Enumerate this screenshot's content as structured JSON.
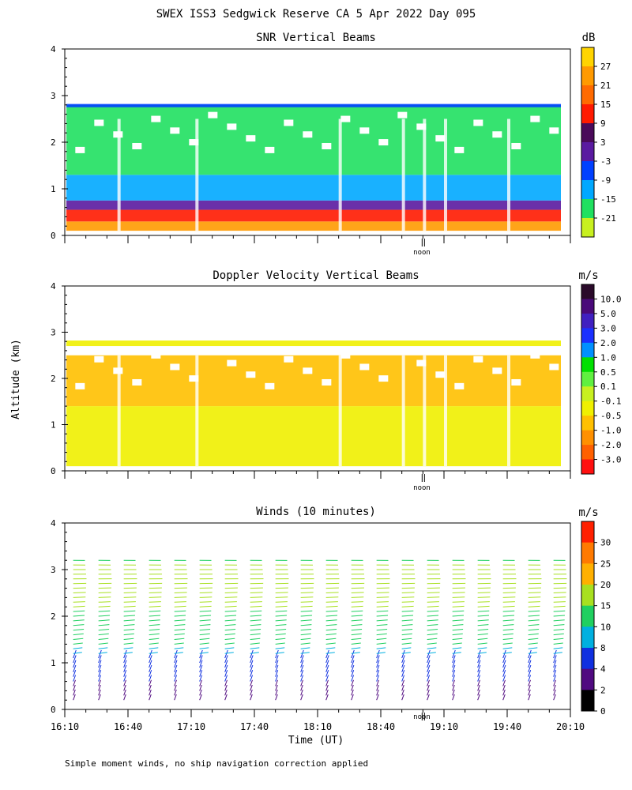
{
  "page": {
    "title": "SWEX ISS3 Sedgwick Reserve CA   5 Apr 2022 Day 095",
    "ylabel": "Altitude (km)",
    "xlabel": "Time (UT)",
    "footer": "Simple moment winds, no ship navigation correction applied",
    "noon_label": "noon"
  },
  "chart_data": [
    {
      "type": "heatmap",
      "title": "SNR Vertical Beams",
      "ylim": [
        0,
        4
      ],
      "yticks": [
        "0",
        "1",
        "2",
        "3",
        "4"
      ],
      "colorbar": {
        "unit": "dB",
        "labels": [
          "27",
          "21",
          "15",
          "9",
          "3",
          "-3",
          "-9",
          "-15",
          "-21"
        ],
        "colors": [
          "#ffd400",
          "#ff9a00",
          "#ff6a00",
          "#ff1a00",
          "#4a0a5a",
          "#5a1aa0",
          "#0040ff",
          "#00a8ff",
          "#20e060",
          "#c8f020"
        ]
      },
      "layers": [
        {
          "alt": [
            0.1,
            0.3
          ],
          "label": "27"
        },
        {
          "alt": [
            0.3,
            0.55
          ],
          "label": "15"
        },
        {
          "alt": [
            0.55,
            0.75
          ],
          "label": "3"
        },
        {
          "alt": [
            0.75,
            1.3
          ],
          "label": "-9"
        },
        {
          "alt": [
            1.3,
            2.8
          ],
          "label": "-15"
        },
        {
          "alt": [
            2.75,
            2.82
          ],
          "label": "-3"
        }
      ]
    },
    {
      "type": "heatmap",
      "title": "Doppler Velocity Vertical Beams",
      "ylim": [
        0,
        4
      ],
      "yticks": [
        "0",
        "1",
        "2",
        "3",
        "4"
      ],
      "colorbar": {
        "unit": "m/s",
        "labels": [
          "10.0",
          "5.0",
          "3.0",
          "2.0",
          "1.0",
          "0.5",
          "0.1",
          "-0.1",
          "-0.5",
          "-1.0",
          "-2.0",
          "-3.0"
        ],
        "colors": [
          "#2a0a2a",
          "#4a0a7a",
          "#4020c0",
          "#1a30ff",
          "#0090ff",
          "#00e000",
          "#60f040",
          "#c8f020",
          "#f0f000",
          "#ffc000",
          "#ff9000",
          "#ff6000",
          "#ff1010"
        ]
      },
      "layers": [
        {
          "alt": [
            0.1,
            1.4
          ],
          "label": "-0.1"
        },
        {
          "alt": [
            1.4,
            2.5
          ],
          "label": "-0.5"
        },
        {
          "alt": [
            2.7,
            2.82
          ],
          "label": "-0.1"
        }
      ]
    },
    {
      "type": "scatter",
      "title": "Winds (10 minutes)",
      "ylim": [
        0,
        4
      ],
      "yticks": [
        "0",
        "1",
        "2",
        "3",
        "4"
      ],
      "xticks": [
        "16:10",
        "16:40",
        "17:10",
        "17:40",
        "18:10",
        "18:40",
        "19:10",
        "19:40",
        "20:10"
      ],
      "xlim_minutes": [
        970,
        1210
      ],
      "colorbar": {
        "unit": "m/s",
        "labels": [
          "30",
          "25",
          "20",
          "15",
          "10",
          "8",
          "4",
          "2",
          "0"
        ],
        "colors": [
          "#ff2000",
          "#ff7a00",
          "#ffb000",
          "#a8e020",
          "#20d060",
          "#00b0e0",
          "#1030e0",
          "#500a80",
          "#000000"
        ]
      },
      "profiles_minutes": [
        974,
        986,
        998,
        1010,
        1022,
        1034,
        1046,
        1058,
        1070,
        1082,
        1094,
        1106,
        1118,
        1130,
        1142,
        1154,
        1166,
        1178,
        1190,
        1202
      ],
      "speed_by_altitude": [
        {
          "alt": 0.4,
          "speed": 3
        },
        {
          "alt": 1.0,
          "speed": 7
        },
        {
          "alt": 1.6,
          "speed": 12
        },
        {
          "alt": 2.2,
          "speed": 15
        },
        {
          "alt": 2.8,
          "speed": 18
        },
        {
          "alt": 3.3,
          "speed": 14
        }
      ]
    }
  ]
}
